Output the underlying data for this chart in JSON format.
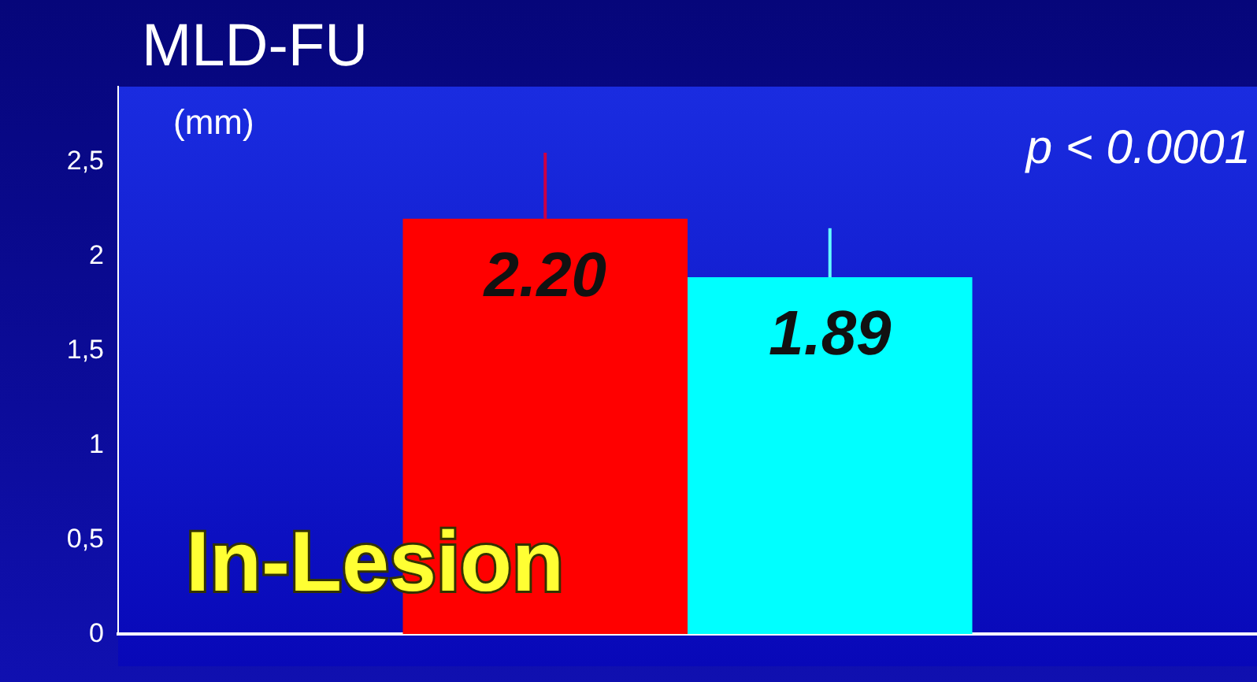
{
  "chart_data": {
    "type": "bar",
    "title": "MLD-FU",
    "ylabel": "(mm)",
    "categories": [
      null
    ],
    "series": [
      {
        "color": "#ff0000",
        "values": [
          2.2
        ],
        "value_labels": [
          "2.20"
        ],
        "errors": [
          [
            2.2,
            2.55
          ]
        ]
      },
      {
        "color": "#00ffff",
        "values": [
          1.89
        ],
        "value_labels": [
          "1.89"
        ],
        "errors": [
          [
            1.89,
            2.15
          ]
        ]
      }
    ],
    "ylim": [
      0,
      2.9
    ],
    "yticks": [
      0,
      {
        "value": 0.5,
        "label": "0,5"
      },
      1,
      {
        "value": 1.5,
        "label": "1,5"
      },
      2,
      {
        "value": 2.5,
        "label": "2,5"
      }
    ],
    "annotations": [
      "p < 0.0001",
      "In-Lesion"
    ],
    "grid": false,
    "legend": false
  }
}
